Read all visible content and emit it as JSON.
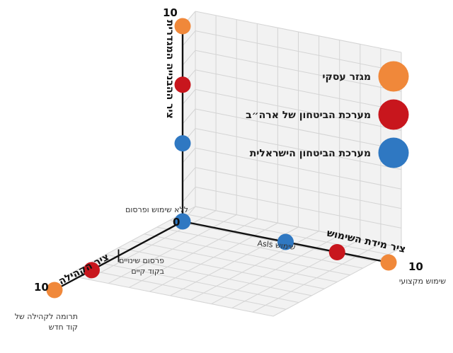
{
  "chart_data": {
    "type": "scatter",
    "projection": "3d",
    "axes": {
      "x": {
        "label": "ציר מידת השימוש",
        "range": [
          0,
          10
        ]
      },
      "y": {
        "label": "ציר הקהילה",
        "range": [
          0,
          10
        ]
      },
      "z": {
        "label": "ציר ההבנייה המגדרית",
        "range": [
          0,
          10
        ]
      }
    },
    "tick_labels": {
      "origin": "0",
      "x_max": "10",
      "y_max": "10",
      "z_max": "10"
    },
    "annotations": {
      "x_mid": "שימוש Asls",
      "x_end": "שימוש מקצועי",
      "y_mid": "פרסום שינויים בקוד קיים",
      "y_end": "תרומה לקהילה של קוד חדש",
      "origin": "ללא שימוש ופרסום"
    },
    "series": [
      {
        "name": "מגזר עסקי",
        "color": "#f0883a",
        "points": [
          {
            "x": 0,
            "y": 0,
            "z": 10
          },
          {
            "x": 10,
            "y": 0,
            "z": 0
          },
          {
            "x": 0,
            "y": 10,
            "z": 0
          }
        ]
      },
      {
        "name": "מערכת הביטחון של ארה״ב",
        "color": "#c8161d",
        "points": [
          {
            "x": 0,
            "y": 0,
            "z": 7
          },
          {
            "x": 7.5,
            "y": 0,
            "z": 0
          },
          {
            "x": 0,
            "y": 7.1,
            "z": 0
          }
        ]
      },
      {
        "name": "מערכת הביטחון הישראלית",
        "color": "#2f78c2",
        "points": [
          {
            "x": 0,
            "y": 0,
            "z": 4
          },
          {
            "x": 5,
            "y": 0,
            "z": 0
          },
          {
            "x": 0,
            "y": 0,
            "z": 0
          }
        ]
      }
    ],
    "legend_position": "right",
    "grid": true
  }
}
